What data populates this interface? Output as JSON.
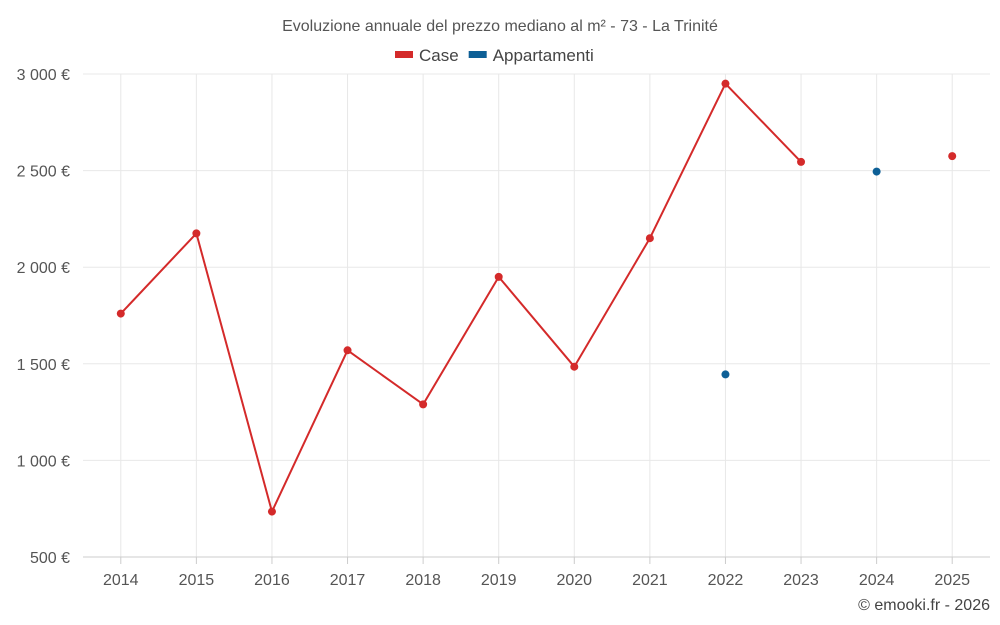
{
  "chart_data": {
    "type": "line",
    "title": "Evoluzione annuale del prezzo mediano al m² - 73 - La Trinité",
    "categories": [
      "2014",
      "2015",
      "2016",
      "2017",
      "2018",
      "2019",
      "2020",
      "2021",
      "2022",
      "2023",
      "2024",
      "2025"
    ],
    "y_ticks": [
      500,
      1000,
      1500,
      2000,
      2500,
      3000
    ],
    "y_tick_labels": [
      "500 €",
      "1 000 €",
      "1 500 €",
      "2 000 €",
      "2 500 €",
      "3 000 €"
    ],
    "ylim": [
      500,
      3000
    ],
    "xlabel": "",
    "ylabel": "",
    "grid": true,
    "legend_position": "top-center",
    "series": [
      {
        "name": "Case",
        "color": "#d42a2a",
        "values": [
          1760,
          2175,
          735,
          1570,
          1290,
          1950,
          1485,
          2150,
          2950,
          2545,
          null,
          2575
        ]
      },
      {
        "name": "Appartamenti",
        "color": "#0d5f96",
        "values": [
          null,
          null,
          null,
          null,
          null,
          null,
          null,
          null,
          1445,
          null,
          2495,
          null
        ]
      }
    ]
  },
  "credit": "© emooki.fr - 2026"
}
